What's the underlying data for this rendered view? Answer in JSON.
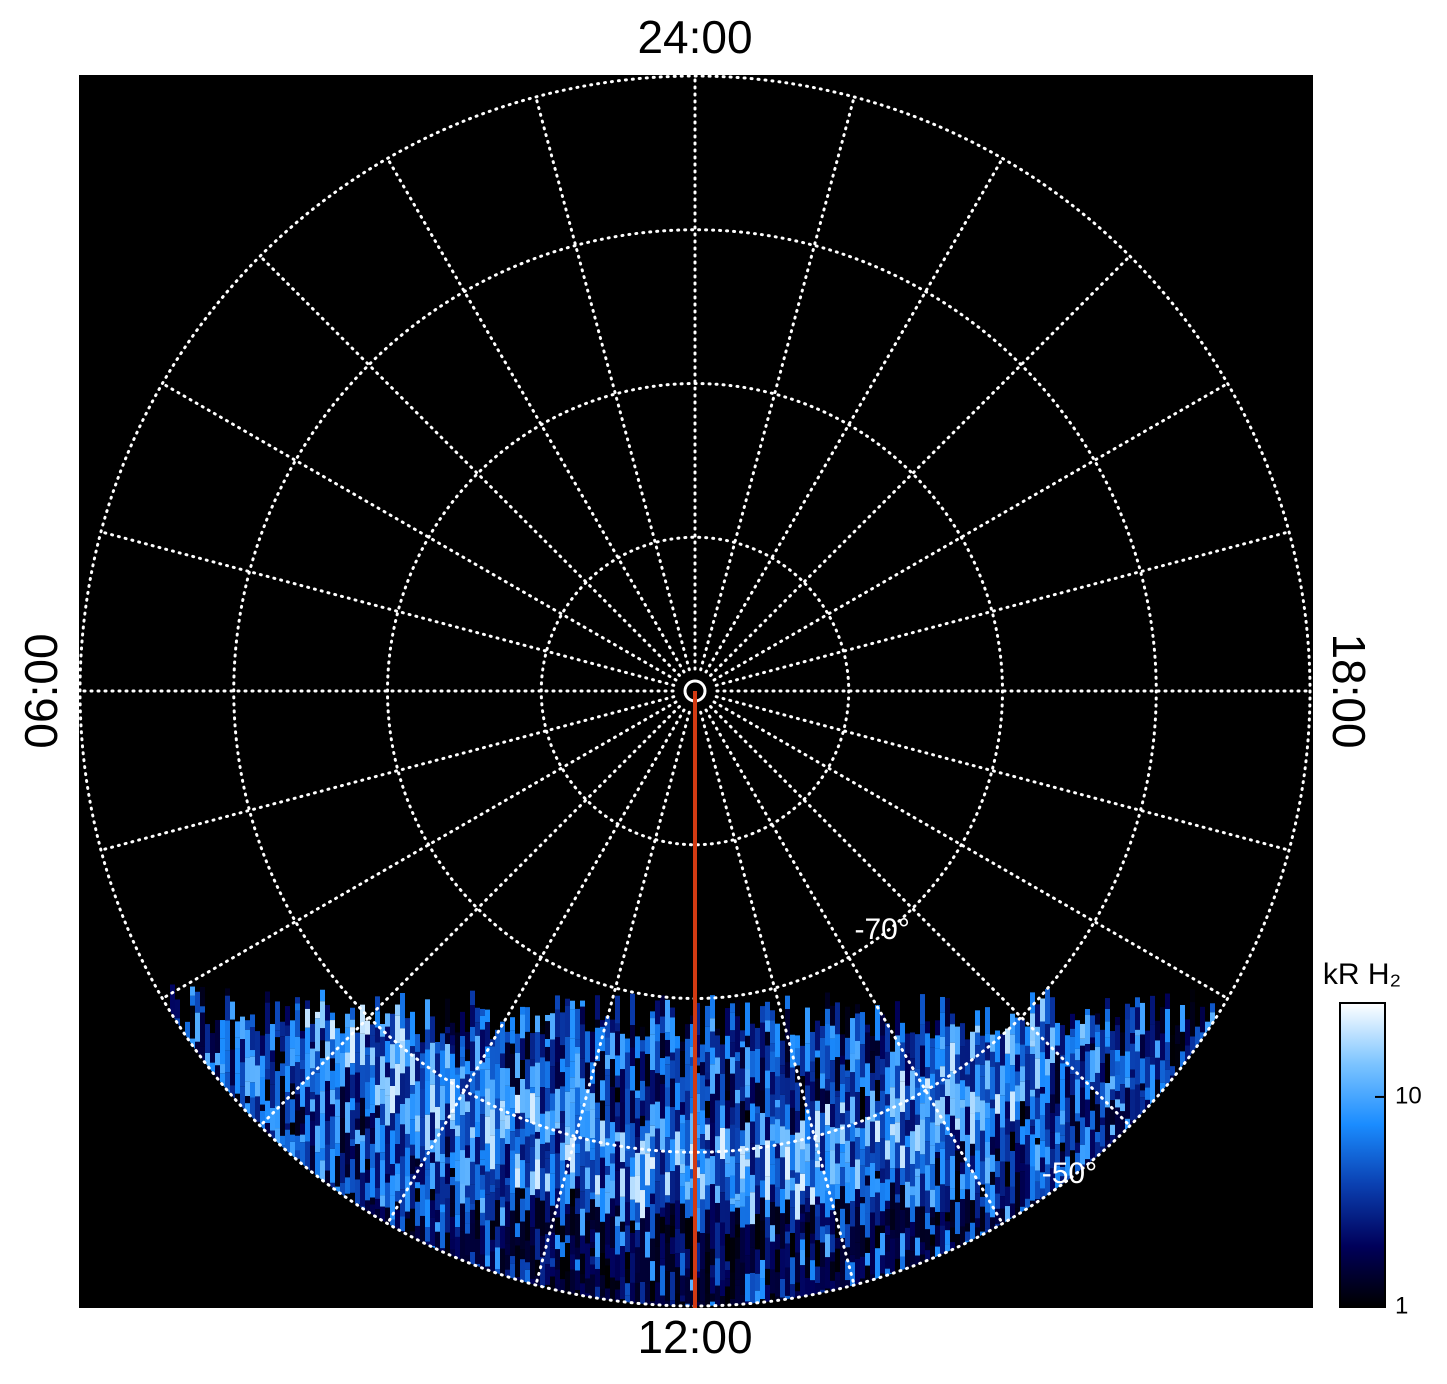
{
  "chart_data": {
    "type": "polar",
    "rlim": [
      -90,
      -50
    ],
    "lat_circles": [
      -80,
      -70,
      -60,
      -50
    ],
    "lat_labels": [
      {
        "value": -70,
        "label": "-70°"
      },
      {
        "value": -50,
        "label": "-50°"
      }
    ],
    "lat_label_hour": 14.5,
    "meridians": [
      0,
      1,
      2,
      3,
      4,
      5,
      6,
      7,
      8,
      9,
      10,
      11,
      12,
      13,
      14,
      15,
      16,
      17,
      18,
      19,
      20,
      21,
      22,
      23
    ],
    "hour_labels": [
      {
        "value": 24,
        "label": "24:00"
      },
      {
        "value": 6,
        "label": "06:00"
      },
      {
        "value": 12,
        "label": "12:00"
      },
      {
        "value": 18,
        "label": "18:00"
      }
    ],
    "highlight_meridian": {
      "value": 12,
      "color": "#d23a12"
    },
    "grid": true,
    "colorbar": {
      "title": "kR H₂",
      "log": true,
      "lim": [
        1,
        28
      ],
      "ticks": [
        1,
        10
      ],
      "colors": [
        "#000000",
        "#00005a",
        "#0a3fb0",
        "#1a8cff",
        "#7cc4ff",
        "#ffffff"
      ]
    }
  }
}
